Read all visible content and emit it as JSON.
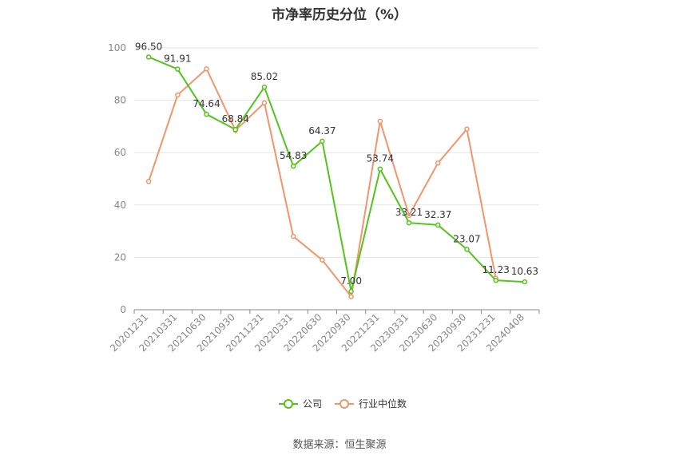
{
  "chart_data": {
    "type": "line",
    "title": "市净率历史分位（%）",
    "xlabel": "",
    "ylabel": "",
    "ylim": [
      0,
      100
    ],
    "yticks": [
      0,
      20,
      40,
      60,
      80,
      100
    ],
    "grid": true,
    "legend_position": "bottom",
    "categories": [
      "20201231",
      "20210331",
      "20210630",
      "20210930",
      "20211231",
      "20220331",
      "20220630",
      "20220930",
      "20221231",
      "20230331",
      "20230630",
      "20230930",
      "20231231",
      "20240408"
    ],
    "series": [
      {
        "name": "公司",
        "color": "#52c41a",
        "values": [
          96.5,
          91.91,
          74.64,
          68.84,
          85.02,
          54.83,
          64.37,
          7.0,
          53.74,
          33.21,
          32.37,
          23.07,
          11.23,
          10.63
        ],
        "labels": [
          "96.50",
          "91.91",
          "74.64",
          "68.84",
          "85.02",
          "54.83",
          "64.37",
          "7.00",
          "53.74",
          "33.21",
          "32.37",
          "23.07",
          "11.23",
          "10.63"
        ]
      },
      {
        "name": "行业中位数",
        "color": "#f4946a",
        "values": [
          49,
          82,
          92,
          68.5,
          79,
          28,
          19,
          5,
          72,
          36,
          56,
          69,
          12,
          null
        ]
      }
    ],
    "source": "数据来源：恒生聚源"
  }
}
